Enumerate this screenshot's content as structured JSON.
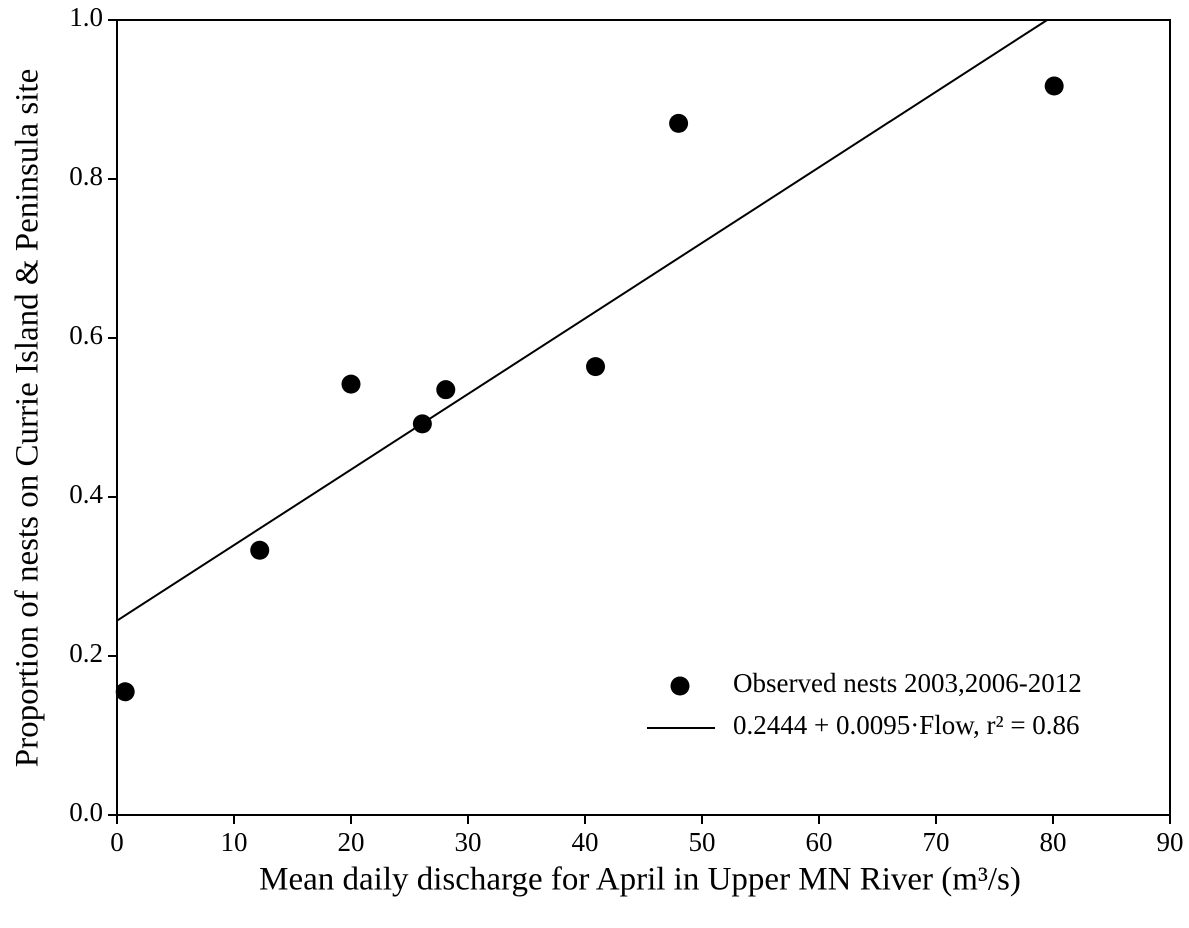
{
  "chart_data": {
    "type": "scatter",
    "xlabel": "Mean daily discharge for April in Upper MN River (m³/s)",
    "ylabel": "Proportion of nests on Currie Island & Peninsula site",
    "series": [
      {
        "name": "Observed nests 2003,2006-2012",
        "style": "marker",
        "color": "#000000",
        "x": [
          0.7,
          12.2,
          20.0,
          26.1,
          28.1,
          40.9,
          48.0,
          80.1
        ],
        "values": [
          0.155,
          0.333,
          0.542,
          0.492,
          0.535,
          0.564,
          0.87,
          0.917
        ]
      },
      {
        "name": "0.2444 + 0.0095·Flow, r² = 0.86",
        "style": "line",
        "color": "#000000",
        "x": [
          0,
          79.5
        ],
        "values": [
          0.2444,
          1.0
        ]
      }
    ],
    "xlim": [
      0,
      90
    ],
    "xticks": [
      0,
      10,
      20,
      30,
      40,
      50,
      60,
      70,
      80,
      90
    ],
    "ylim": [
      0,
      1
    ],
    "yticks": [
      {
        "value": 0,
        "label": "0.0"
      },
      {
        "value": 0.2,
        "label": "0.2"
      },
      {
        "value": 0.4,
        "label": "0.4"
      },
      {
        "value": 0.6,
        "label": "0.6"
      },
      {
        "value": 0.8,
        "label": "0.8"
      },
      {
        "value": 1,
        "label": "1.0"
      }
    ],
    "legend": "lower right"
  }
}
